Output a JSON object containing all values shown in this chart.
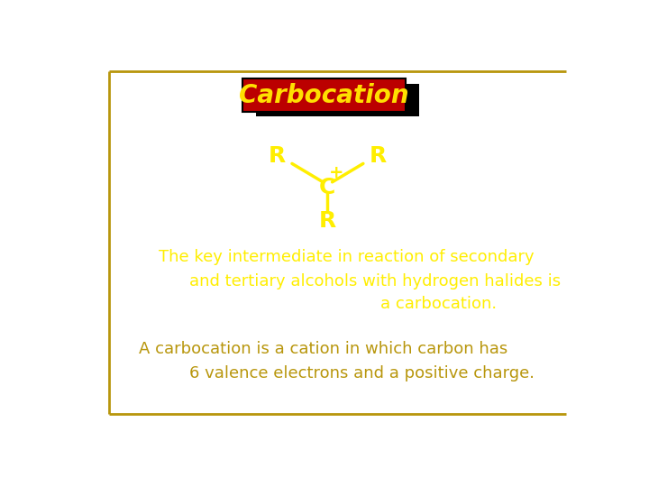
{
  "title": "Carbocation",
  "title_bg_color": "#BB0000",
  "title_text_color": "#FFE000",
  "title_font_size": 20,
  "bond_color": "#FFEE00",
  "text_color_yellow": "#FFEE00",
  "text_color_gold": "#B8960C",
  "bg_color": "#FFFFFF",
  "border_color": "#B8960C",
  "line1": "The key intermediate in reaction of secondary",
  "line2": "and tertiary alcohols with hydrogen halides is",
  "line3": "a carbocation.",
  "line4": "A carbocation is a cation in which carbon has",
  "line5": "6 valence electrons and a positive charge."
}
